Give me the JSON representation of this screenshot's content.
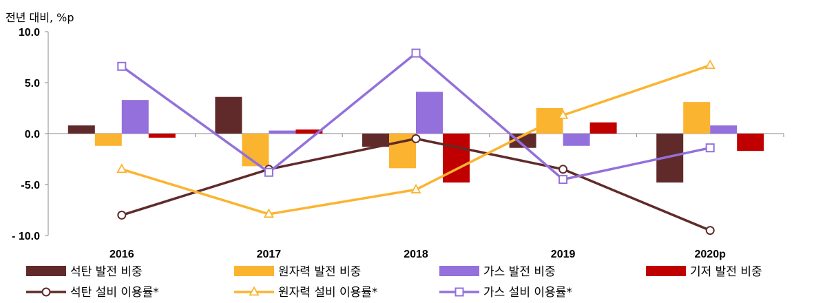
{
  "chart_data": {
    "type": "bar",
    "unit_label": "전년 대비, %p",
    "categories": [
      "2016",
      "2017",
      "2018",
      "2019",
      "2020p"
    ],
    "ylim": [
      -10,
      10
    ],
    "yticks": [
      "10.0",
      "5.0",
      "0.0",
      "-5.0",
      "- 10.0"
    ],
    "ytick_values": [
      10,
      5,
      0,
      -5,
      -10
    ],
    "bar_series": [
      {
        "name": "석탄 발전 비중",
        "color": "#612A2A",
        "values": [
          0.8,
          3.6,
          -1.3,
          -1.4,
          -4.8
        ]
      },
      {
        "name": "원자력 발전 비중",
        "color": "#FBB430",
        "values": [
          -1.2,
          -3.2,
          -3.4,
          2.5,
          3.1
        ]
      },
      {
        "name": "가스 발전 비중",
        "color": "#9370DB",
        "values": [
          3.3,
          0.3,
          4.1,
          -1.2,
          0.8
        ]
      },
      {
        "name": "기저 발전 비중",
        "color": "#C00000",
        "values": [
          -0.4,
          0.4,
          -4.8,
          1.1,
          -1.7
        ]
      }
    ],
    "line_series": [
      {
        "name": "석탄 설비 이용률*",
        "color": "#612A2A",
        "marker": "circle",
        "values": [
          -8.0,
          -3.5,
          -0.5,
          -3.5,
          -9.5
        ]
      },
      {
        "name": "원자력 설비 이용률*",
        "color": "#FBB430",
        "marker": "triangle",
        "values": [
          -3.5,
          -7.9,
          -5.5,
          1.8,
          6.7
        ]
      },
      {
        "name": "가스 설비 이용률*",
        "color": "#9370DB",
        "marker": "square",
        "values": [
          6.6,
          -3.8,
          7.9,
          -4.5,
          -1.4
        ]
      }
    ]
  }
}
